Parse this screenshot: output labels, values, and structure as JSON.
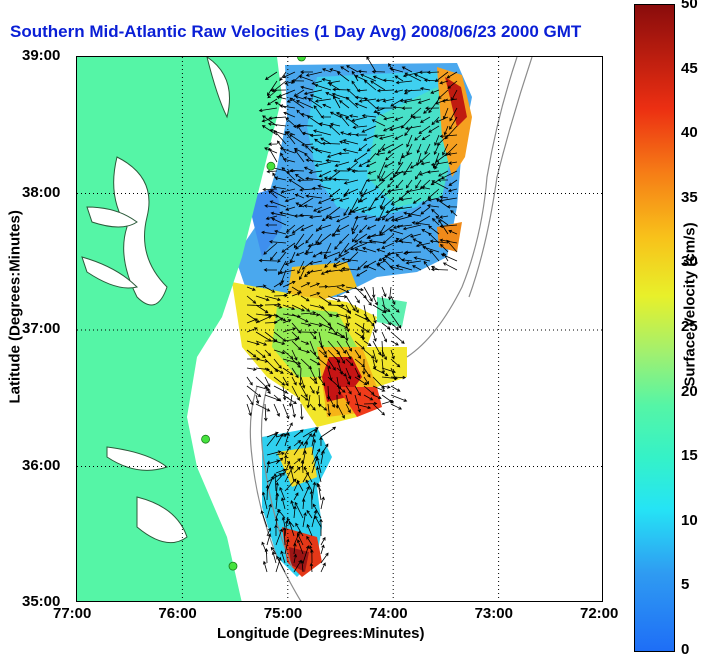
{
  "title": "Southern Mid-Atlantic Raw Velocities (1 Day Avg) 2008/06/23 2000 GMT",
  "map": {
    "x_axis_label": "Longitude (Degrees:Minutes)",
    "y_axis_label": "Latitude (Degrees:Minutes)",
    "x_ticks": [
      "77:00",
      "76:00",
      "75:00",
      "74:00",
      "73:00",
      "72:00"
    ],
    "y_ticks": [
      "39:00",
      "38:00",
      "37:00",
      "36:00",
      "35:00"
    ],
    "lon_range": [
      -77,
      -72
    ],
    "lat_range": [
      35,
      39
    ],
    "grid": "dotted",
    "land_color": "#55f5a6",
    "coast_color": "#2b5a3a",
    "bathymetry_color": "#8c8c8c",
    "arrow_color": "#000000",
    "station_color": "#46e23e",
    "stations": [
      {
        "lon": -74.87,
        "lat": 39.0
      },
      {
        "lon": -75.16,
        "lat": 38.2
      },
      {
        "lon": -75.78,
        "lat": 36.2
      },
      {
        "lon": -75.52,
        "lat": 35.27
      }
    ]
  },
  "colorbar": {
    "label": "Surface Velocity (cm/s)",
    "ticks": [
      "50",
      "45",
      "40",
      "35",
      "30",
      "25",
      "20",
      "15",
      "10",
      "5",
      "0"
    ],
    "range": [
      0,
      50
    ]
  }
}
